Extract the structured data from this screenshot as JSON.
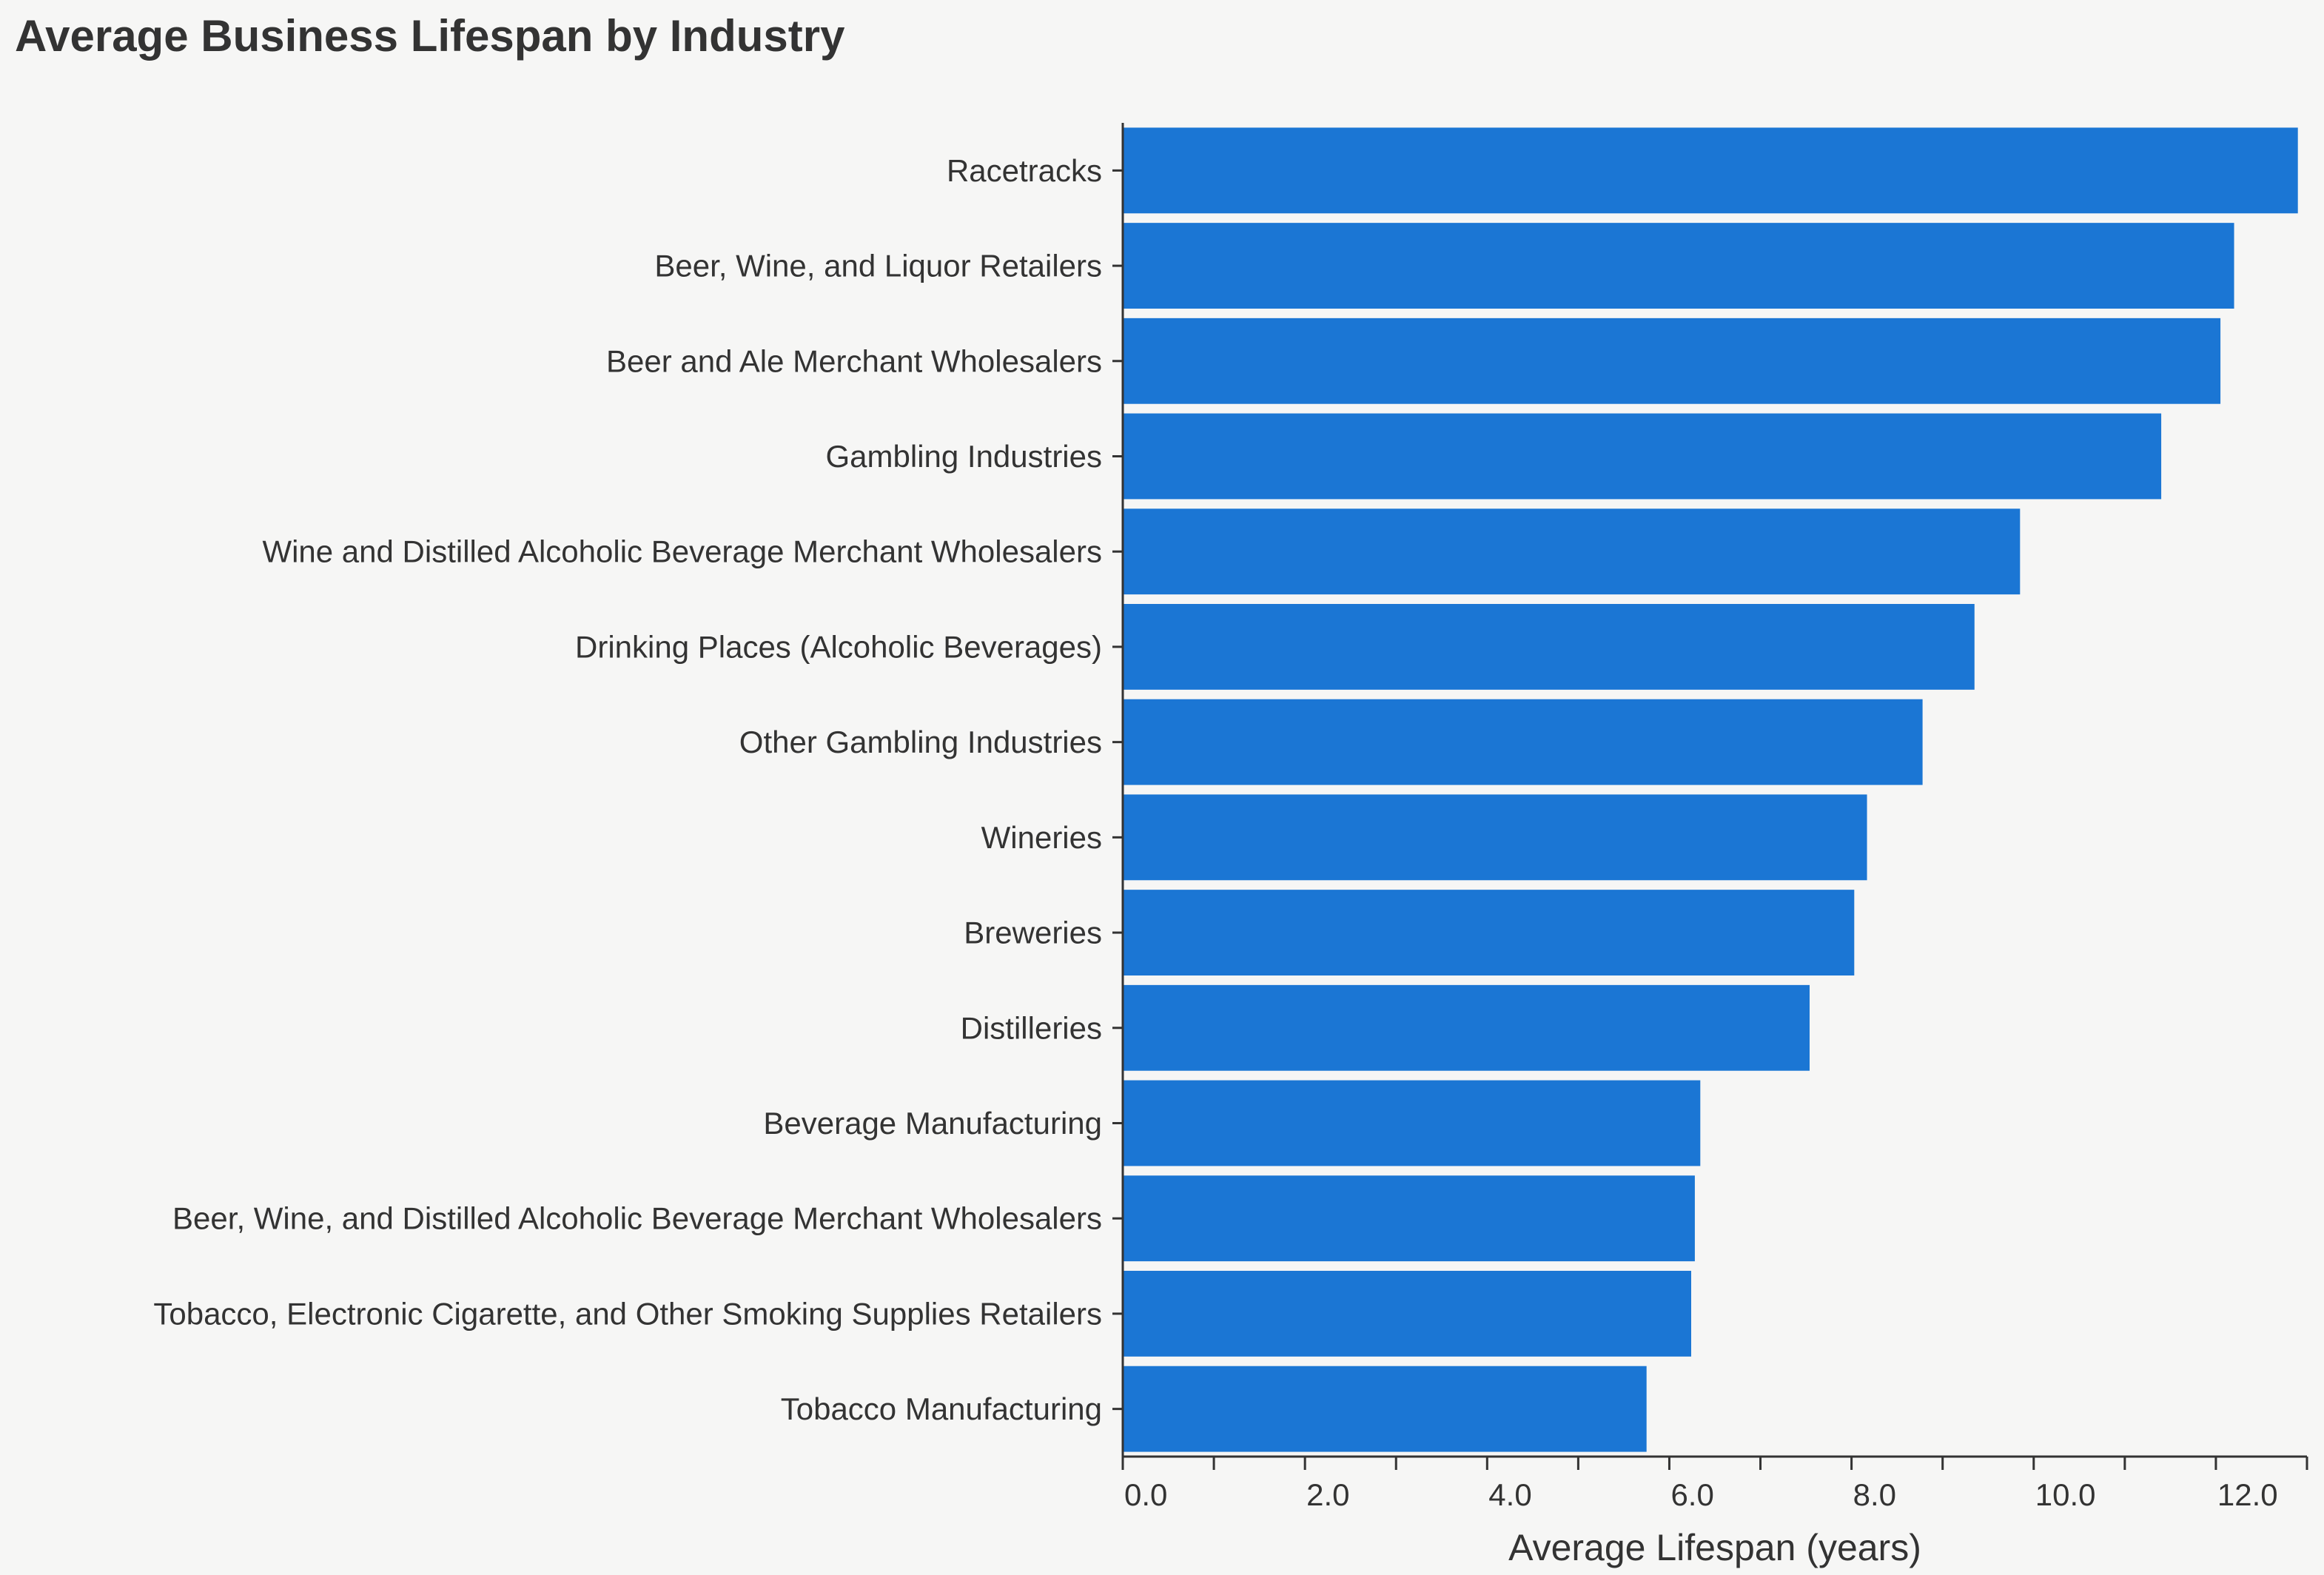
{
  "chart_data": {
    "type": "bar",
    "orientation": "horizontal",
    "title": "Average Business Lifespan by Industry",
    "xlabel": "Average Lifespan (years)",
    "ylabel": "",
    "xlim": [
      0,
      13
    ],
    "x_ticks": [
      0,
      2,
      4,
      6,
      8,
      10,
      12
    ],
    "x_tick_labels": [
      "0.0",
      "2.0",
      "4.0",
      "6.0",
      "8.0",
      "10.0",
      "12.0"
    ],
    "grid": false,
    "legend": "none",
    "bar_color": "#1b76d4",
    "categories": [
      "Racetracks",
      "Beer, Wine, and Liquor Retailers",
      "Beer and Ale Merchant Wholesalers",
      "Gambling Industries",
      "Wine and Distilled Alcoholic Beverage Merchant Wholesalers",
      "Drinking Places (Alcoholic Beverages)",
      "Other Gambling Industries",
      "Wineries",
      "Breweries",
      "Distilleries",
      "Beverage Manufacturing",
      "Beer, Wine, and Distilled Alcoholic Beverage Merchant Wholesalers",
      "Tobacco, Electronic Cigarette, and Other Smoking Supplies Retailers",
      "Tobacco Manufacturing"
    ],
    "values": [
      12.9,
      12.2,
      12.05,
      11.4,
      9.85,
      9.35,
      8.78,
      8.17,
      8.03,
      7.54,
      6.34,
      6.28,
      6.24,
      5.75
    ]
  }
}
